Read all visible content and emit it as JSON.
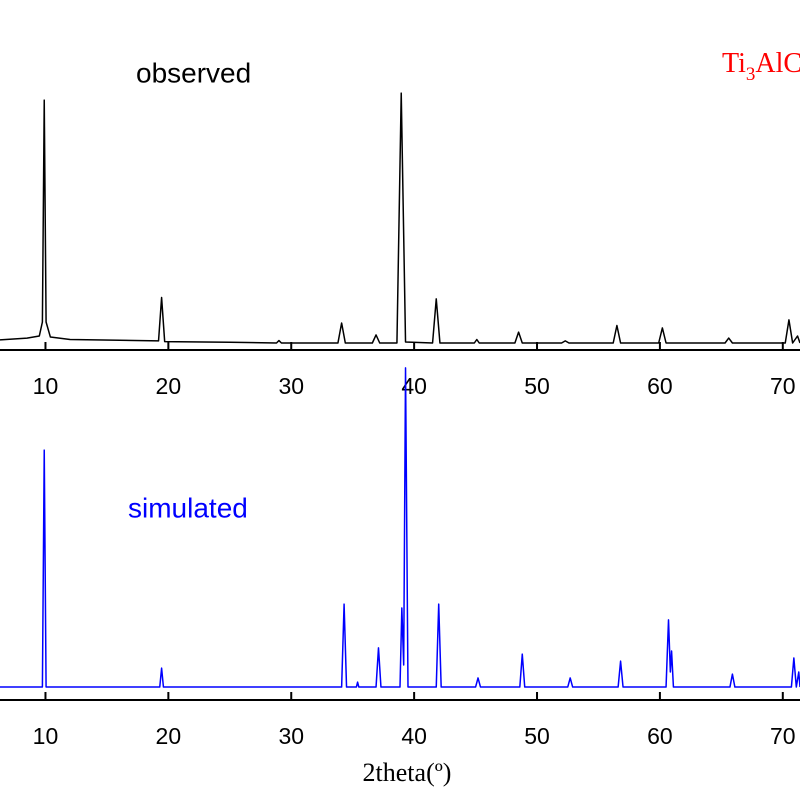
{
  "chart_data": [
    {
      "type": "line",
      "annotation": "observed",
      "label_formula": {
        "element1": "Ti",
        "sub": "3",
        "rest": "AlC"
      },
      "xlim": [
        6.3,
        71.4
      ],
      "ylim": [
        0,
        100
      ],
      "xticks": [
        10,
        20,
        30,
        40,
        50,
        60,
        70
      ],
      "series": [
        {
          "color": "#000000",
          "x": [
            6.3,
            8.5,
            9.5,
            9.75,
            9.9,
            10.05,
            10.4,
            12,
            19.2,
            19.45,
            19.7,
            25,
            28.8,
            29,
            29.2,
            33.8,
            34.1,
            34.4,
            36.6,
            36.9,
            37.2,
            38.6,
            38.95,
            39.3,
            41.5,
            41.8,
            42.1,
            44.9,
            45.1,
            45.3,
            48.2,
            48.5,
            48.8,
            52.0,
            52.3,
            52.6,
            56.2,
            56.5,
            56.8,
            59.9,
            60.2,
            60.5,
            65.3,
            65.6,
            65.9,
            70.2,
            70.5,
            70.8,
            71.2,
            71.4
          ],
          "values": [
            2.9,
            3.4,
            4,
            8,
            71.4,
            8,
            3.7,
            3.0,
            2.6,
            15,
            2.4,
            2.2,
            2.0,
            2.7,
            2.0,
            2.0,
            7.7,
            2.0,
            2.0,
            4.3,
            2.0,
            2.0,
            73.4,
            2.3,
            2.0,
            14.6,
            2.0,
            2.0,
            3.0,
            2.0,
            2.0,
            5.1,
            2.0,
            2.0,
            2.6,
            2.0,
            2.0,
            7,
            2.0,
            2.0,
            6.3,
            2.0,
            2.0,
            3.4,
            2.0,
            2.0,
            8.6,
            2.0,
            4,
            2.0
          ]
        }
      ]
    },
    {
      "type": "line",
      "annotation": "simulated",
      "xlabel": "2theta(º)",
      "xlim": [
        6.3,
        71.4
      ],
      "ylim": [
        0,
        100
      ],
      "xticks": [
        10,
        20,
        30,
        40,
        50,
        60,
        70
      ],
      "series": [
        {
          "color": "#0000ff",
          "x": [
            6.3,
            9.75,
            9.9,
            10.05,
            19.3,
            19.45,
            19.6,
            34.1,
            34.3,
            34.5,
            35.3,
            35.4,
            35.5,
            36.9,
            37.1,
            37.3,
            38.85,
            39.0,
            39.15,
            39.3,
            39.5,
            41.8,
            42.0,
            42.2,
            45.0,
            45.2,
            45.4,
            48.6,
            48.8,
            49.0,
            52.5,
            52.7,
            52.9,
            56.6,
            56.8,
            57.0,
            60.5,
            60.7,
            60.85,
            60.95,
            61.1,
            65.7,
            65.9,
            66.1,
            70.7,
            70.9,
            71.1,
            71.3,
            71.4
          ],
          "values": [
            3.7,
            3.7,
            71.4,
            3.7,
            3.7,
            9.1,
            3.7,
            3.7,
            27.4,
            3.7,
            3.7,
            5.1,
            3.7,
            3.7,
            14.9,
            3.7,
            3.7,
            26.3,
            10,
            94.9,
            3.7,
            3.7,
            27.4,
            3.7,
            3.7,
            6.3,
            3.7,
            3.7,
            13.1,
            3.7,
            3.7,
            6.3,
            3.7,
            3.7,
            11.1,
            3.7,
            3.7,
            22.9,
            8,
            14,
            3.7,
            3.7,
            7.4,
            3.7,
            3.7,
            12,
            3.7,
            8,
            3.7
          ]
        }
      ]
    }
  ]
}
